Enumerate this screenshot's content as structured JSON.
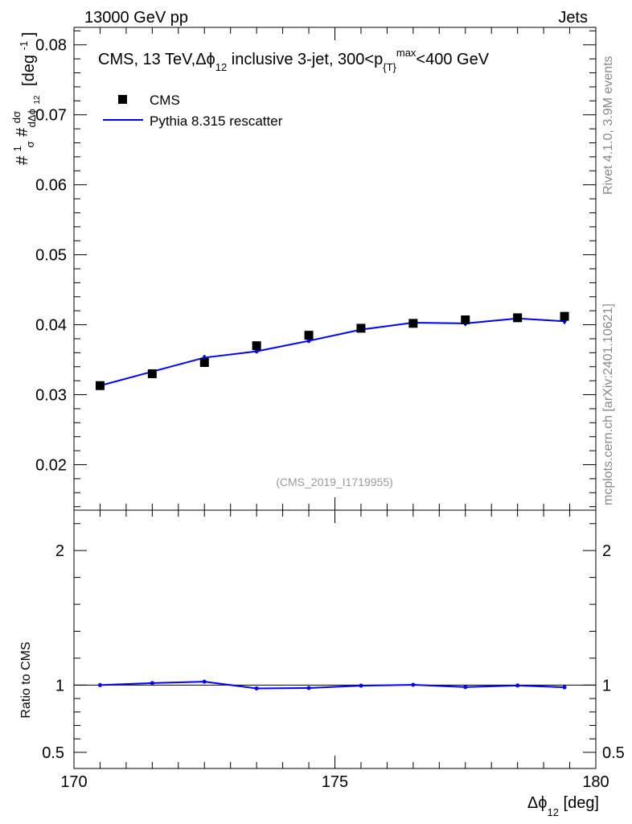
{
  "header": {
    "left": "13000 GeV pp",
    "right": "Jets"
  },
  "side_labels": {
    "rivet": "Rivet 4.1.0,  3.9M events",
    "mcplots": "mcplots.cern.ch [arXiv:2401.10621]"
  },
  "analysis_id": "(CMS_2019_I1719955)",
  "colors": {
    "data": "#000000",
    "mc": "#0000ff",
    "side_text": "#888888"
  },
  "chart_data": [
    {
      "type": "scatter",
      "panel": "main",
      "title": {
        "prefix": "CMS, 13 TeV,",
        "delta_phi": "Δϕ",
        "delta_phi_sub": "12",
        "middle": " inclusive 3-jet, 300<p",
        "pt_sub": "{T}",
        "pt_sup": "max",
        "suffix": "<400 GeV"
      },
      "ylabel": {
        "hash1": "#",
        "one": "1",
        "sigma": "σ",
        "hash2": "#",
        "dsigma": "dσ",
        "denom": "dΔϕ",
        "denom_sub": "12",
        "unit": "[deg",
        "unit_sup": "-1",
        "unit_close": "]"
      },
      "ylim": [
        0.0135,
        0.0825
      ],
      "xlim": [
        170,
        180
      ],
      "yticks": [
        0.02,
        0.03,
        0.04,
        0.05,
        0.06,
        0.07,
        0.08
      ],
      "ytick_labels": [
        "0.02",
        "0.03",
        "0.04",
        "0.05",
        "0.06",
        "0.07",
        "0.08"
      ],
      "legend": {
        "placement": "top-left",
        "entries": [
          "CMS",
          "Pythia 8.315 rescatter"
        ]
      },
      "series": [
        {
          "name": "CMS",
          "style": "markers",
          "x": [
            170.5,
            171.5,
            172.5,
            173.5,
            174.5,
            175.5,
            176.5,
            177.5,
            178.5,
            179.4
          ],
          "y": [
            0.0313,
            0.033,
            0.0346,
            0.037,
            0.0385,
            0.0395,
            0.0402,
            0.0407,
            0.041,
            0.0412
          ]
        },
        {
          "name": "Pythia 8.315 rescatter",
          "style": "line",
          "x": [
            170.5,
            171.5,
            172.5,
            173.5,
            174.5,
            175.5,
            176.5,
            177.5,
            178.5,
            179.4
          ],
          "y": [
            0.0313,
            0.0333,
            0.0353,
            0.0362,
            0.0377,
            0.0393,
            0.0403,
            0.0402,
            0.0409,
            0.0405
          ],
          "yerr": [
            0.0003,
            0.0003,
            0.0004,
            0.0003,
            0.0003,
            0.0003,
            0.0003,
            0.0004,
            0.0003,
            0.0004
          ]
        }
      ]
    },
    {
      "type": "line",
      "panel": "ratio",
      "ylabel": "Ratio to CMS",
      "ylim": [
        0.38,
        2.3
      ],
      "xlim": [
        170,
        180
      ],
      "yticks": [
        0.5,
        1,
        2
      ],
      "ytick_labels": [
        "0.5",
        "1",
        "2"
      ],
      "xticks": [
        170,
        175,
        180
      ],
      "xtick_labels": [
        "170",
        "175",
        "180"
      ],
      "xlabel": {
        "delta_phi": "Δϕ",
        "sub": "12",
        "unit": " [deg]"
      },
      "reference": 1,
      "series": [
        {
          "name": "Pythia 8.315 rescatter",
          "x": [
            170.5,
            171.5,
            172.5,
            173.5,
            174.5,
            175.5,
            176.5,
            177.5,
            178.5,
            179.4
          ],
          "y": [
            1.0,
            1.015,
            1.025,
            0.975,
            0.978,
            0.995,
            1.002,
            0.985,
            0.997,
            0.983
          ],
          "yerr": [
            0.01,
            0.01,
            0.012,
            0.009,
            0.009,
            0.008,
            0.008,
            0.01,
            0.008,
            0.01
          ]
        }
      ]
    }
  ]
}
